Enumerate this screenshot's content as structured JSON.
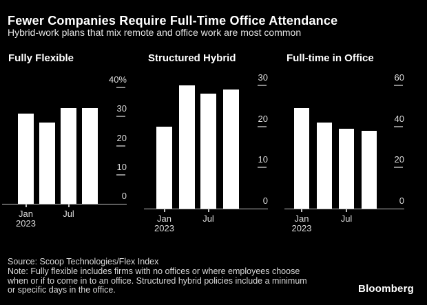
{
  "colors": {
    "background": "#000000",
    "bar_fill": "#ffffff",
    "heading_text": "#ffffff",
    "subtitle_text": "#e6e6e6",
    "tick_label_text": "#dcdcdc",
    "tick_mark": "#8a8a8a",
    "axis_line": "#c4c4c4",
    "footnote_text": "#d9d9d9"
  },
  "header": {
    "title": "Fewer Companies Require Full-Time Office Attendance",
    "subtitle": "Hybrid-work plans that mix remote and office work are most common"
  },
  "chart_data": [
    {
      "type": "bar",
      "title": "Fully Flexible",
      "values": [
        31,
        28,
        33,
        33
      ],
      "ylim": [
        0,
        40
      ],
      "grid": false,
      "legend": "none",
      "y_axis_side": "right",
      "y_ticks": [
        {
          "value": 0,
          "label": "0"
        },
        {
          "value": 10,
          "label": "10"
        },
        {
          "value": 20,
          "label": "20"
        },
        {
          "value": 30,
          "label": "30"
        },
        {
          "value": 40,
          "label": "40%"
        }
      ],
      "x_ticks": [
        {
          "bar": 0,
          "lines": [
            "Jan",
            "2023"
          ]
        },
        {
          "bar": 2,
          "lines": [
            "Jul"
          ]
        }
      ]
    },
    {
      "type": "bar",
      "title": "Structured Hybrid",
      "values": [
        20,
        30,
        28,
        29
      ],
      "ylim": [
        0,
        30
      ],
      "grid": false,
      "legend": "none",
      "y_axis_side": "right",
      "y_ticks": [
        {
          "value": 0,
          "label": "0"
        },
        {
          "value": 10,
          "label": "10"
        },
        {
          "value": 20,
          "label": "20"
        },
        {
          "value": 30,
          "label": "30"
        }
      ],
      "x_ticks": [
        {
          "bar": 0,
          "lines": [
            "Jan",
            "2023"
          ]
        },
        {
          "bar": 2,
          "lines": [
            "Jul"
          ]
        }
      ]
    },
    {
      "type": "bar",
      "title": "Full-time in Office",
      "values": [
        49,
        42,
        39,
        38
      ],
      "ylim": [
        0,
        60
      ],
      "grid": false,
      "legend": "none",
      "y_axis_side": "right",
      "y_ticks": [
        {
          "value": 0,
          "label": "0"
        },
        {
          "value": 20,
          "label": "20"
        },
        {
          "value": 40,
          "label": "40"
        },
        {
          "value": 60,
          "label": "60"
        }
      ],
      "x_ticks": [
        {
          "bar": 0,
          "lines": [
            "Jan",
            "2023"
          ]
        },
        {
          "bar": 2,
          "lines": [
            "Jul"
          ]
        }
      ]
    }
  ],
  "footer": {
    "source": "Source: Scoop Technologies/Flex Index",
    "note_lines": [
      "Note: Fully flexible includes firms with no offices or where employees choose",
      "when or if to come in to an office. Structured hybrid policies include a minimum",
      "or specific days in the office.",
      ""
    ],
    "logo": "Bloomberg"
  }
}
